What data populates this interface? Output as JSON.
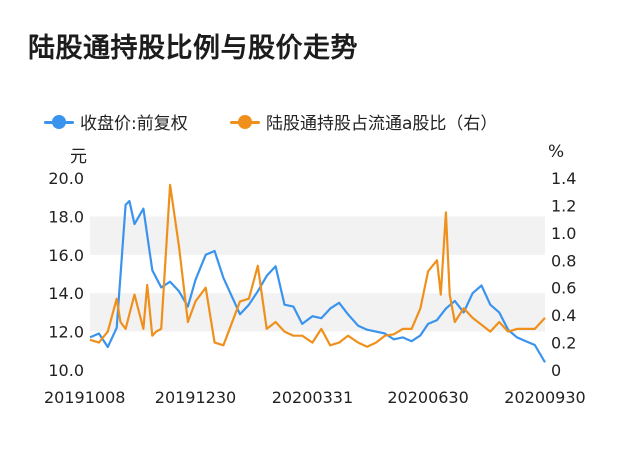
{
  "page": {
    "title": "陆股通持股比例与股价走势"
  },
  "colors": {
    "price": "#3a94ee",
    "ratio": "#f0901c",
    "band": "#f2f2f2",
    "text": "#222222"
  },
  "chart_data": {
    "type": "line",
    "title": "陆股通持股比例与股价走势",
    "left_unit": "元",
    "right_unit": "%",
    "y_left": {
      "min": 10,
      "max": 20,
      "ticks": [
        "10.0",
        "12.0",
        "14.0",
        "16.0",
        "18.0",
        "20.0"
      ]
    },
    "y_right": {
      "min": 0,
      "max": 1.4,
      "ticks": [
        "0",
        "0.2",
        "0.4",
        "0.6",
        "0.8",
        "1.0",
        "1.2",
        "1.4"
      ]
    },
    "x_range": [
      "2019-10-08",
      "2020-09-30"
    ],
    "x_ticks": [
      "20191008",
      "20191230",
      "20200331",
      "20200630",
      "20200930"
    ],
    "grid": "alternating horizontal bands",
    "legend_position": "top",
    "series": [
      {
        "name": "收盘价:前复权",
        "axis": "left",
        "x": [
          "2019-10-08",
          "2019-10-15",
          "2019-10-22",
          "2019-10-29",
          "2019-11-05",
          "2019-11-08",
          "2019-11-12",
          "2019-11-19",
          "2019-11-26",
          "2019-12-03",
          "2019-12-10",
          "2019-12-17",
          "2019-12-24",
          "2019-12-30",
          "2020-01-07",
          "2020-01-14",
          "2020-01-21",
          "2020-02-03",
          "2020-02-10",
          "2020-02-17",
          "2020-02-24",
          "2020-03-02",
          "2020-03-09",
          "2020-03-16",
          "2020-03-23",
          "2020-03-31",
          "2020-04-07",
          "2020-04-14",
          "2020-04-21",
          "2020-04-28",
          "2020-05-06",
          "2020-05-13",
          "2020-05-20",
          "2020-05-27",
          "2020-06-03",
          "2020-06-10",
          "2020-06-17",
          "2020-06-24",
          "2020-06-30",
          "2020-07-07",
          "2020-07-14",
          "2020-07-21",
          "2020-07-28",
          "2020-08-04",
          "2020-08-11",
          "2020-08-18",
          "2020-08-25",
          "2020-09-01",
          "2020-09-08",
          "2020-09-15",
          "2020-09-22",
          "2020-09-30"
        ],
        "y": [
          11.7,
          11.9,
          11.2,
          12.2,
          18.6,
          18.8,
          17.6,
          18.4,
          15.2,
          14.3,
          14.6,
          14.1,
          13.3,
          14.7,
          16.0,
          16.2,
          14.8,
          12.9,
          13.4,
          14.1,
          14.9,
          15.4,
          13.4,
          13.3,
          12.4,
          12.8,
          12.7,
          13.2,
          13.5,
          12.9,
          12.3,
          12.1,
          12.0,
          11.9,
          11.6,
          11.7,
          11.5,
          11.8,
          12.4,
          12.6,
          13.2,
          13.6,
          13.0,
          14.0,
          14.4,
          13.4,
          13.0,
          12.1,
          11.7,
          11.5,
          11.3,
          10.4
        ]
      },
      {
        "name": "陆股通持股占流通a股比（右）",
        "axis": "right",
        "x": [
          "2019-10-08",
          "2019-10-15",
          "2019-10-22",
          "2019-10-29",
          "2019-11-01",
          "2019-11-05",
          "2019-11-12",
          "2019-11-19",
          "2019-11-22",
          "2019-11-26",
          "2019-11-29",
          "2019-12-03",
          "2019-12-10",
          "2019-12-17",
          "2019-12-24",
          "2019-12-30",
          "2020-01-07",
          "2020-01-14",
          "2020-01-21",
          "2020-02-03",
          "2020-02-10",
          "2020-02-17",
          "2020-02-24",
          "2020-03-02",
          "2020-03-09",
          "2020-03-16",
          "2020-03-23",
          "2020-03-31",
          "2020-04-07",
          "2020-04-14",
          "2020-04-21",
          "2020-04-28",
          "2020-05-06",
          "2020-05-13",
          "2020-05-20",
          "2020-05-27",
          "2020-06-03",
          "2020-06-10",
          "2020-06-17",
          "2020-06-24",
          "2020-06-30",
          "2020-07-07",
          "2020-07-10",
          "2020-07-14",
          "2020-07-17",
          "2020-07-21",
          "2020-07-28",
          "2020-08-04",
          "2020-08-11",
          "2020-08-18",
          "2020-08-25",
          "2020-09-01",
          "2020-09-08",
          "2020-09-15",
          "2020-09-22",
          "2020-09-30"
        ],
        "y": [
          0.22,
          0.2,
          0.28,
          0.52,
          0.35,
          0.3,
          0.55,
          0.3,
          0.62,
          0.25,
          0.28,
          0.3,
          1.35,
          0.9,
          0.35,
          0.5,
          0.6,
          0.2,
          0.18,
          0.5,
          0.52,
          0.76,
          0.3,
          0.35,
          0.28,
          0.25,
          0.25,
          0.2,
          0.3,
          0.18,
          0.2,
          0.25,
          0.2,
          0.17,
          0.2,
          0.25,
          0.26,
          0.3,
          0.3,
          0.45,
          0.72,
          0.8,
          0.55,
          1.15,
          0.55,
          0.35,
          0.45,
          0.38,
          0.33,
          0.28,
          0.35,
          0.28,
          0.3,
          0.3,
          0.3,
          0.38
        ]
      }
    ]
  }
}
